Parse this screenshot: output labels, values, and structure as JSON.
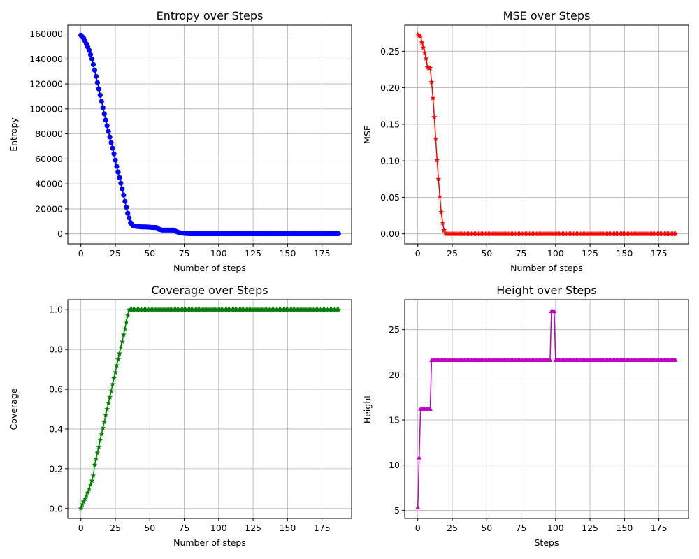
{
  "chart_data": [
    {
      "type": "line",
      "title": "Entropy over Steps",
      "xlabel": "Number of steps",
      "ylabel": "Entropy",
      "color": "#0000ff",
      "marker": "circle",
      "grid": true,
      "xlim": [
        -9.5,
        196.5
      ],
      "ylim": [
        -8000,
        167000
      ],
      "xticks": [
        0,
        25,
        50,
        75,
        100,
        125,
        150,
        175
      ],
      "yticks": [
        0,
        20000,
        40000,
        60000,
        80000,
        100000,
        120000,
        140000,
        160000
      ],
      "x_range": [
        0,
        187
      ],
      "keypoints": [
        [
          0,
          159000
        ],
        [
          2,
          156500
        ],
        [
          4,
          152000
        ],
        [
          6,
          147000
        ],
        [
          8,
          140000
        ],
        [
          10,
          131000
        ],
        [
          12,
          121000
        ],
        [
          14,
          111000
        ],
        [
          16,
          101000
        ],
        [
          18,
          91000
        ],
        [
          20,
          82000
        ],
        [
          22,
          73000
        ],
        [
          24,
          64000
        ],
        [
          26,
          54000
        ],
        [
          28,
          45000
        ],
        [
          30,
          36000
        ],
        [
          32,
          26000
        ],
        [
          34,
          16500
        ],
        [
          36,
          9000
        ],
        [
          38,
          6500
        ],
        [
          40,
          6000
        ],
        [
          42,
          5800
        ],
        [
          44,
          5600
        ],
        [
          48,
          5500
        ],
        [
          50,
          5300
        ],
        [
          55,
          5000
        ],
        [
          57,
          3500
        ],
        [
          59,
          3000
        ],
        [
          67,
          3000
        ],
        [
          70,
          1500
        ],
        [
          72,
          800
        ],
        [
          76,
          300
        ],
        [
          80,
          100
        ],
        [
          187,
          100
        ]
      ]
    },
    {
      "type": "line",
      "title": "MSE over Steps",
      "xlabel": "Number of steps",
      "ylabel": "MSE",
      "color": "#ff0000",
      "marker": "star",
      "grid": true,
      "xlim": [
        -9.5,
        196.5
      ],
      "ylim": [
        -0.0137,
        0.2857
      ],
      "xticks": [
        0,
        25,
        50,
        75,
        100,
        125,
        150,
        175
      ],
      "yticks": [
        0.0,
        0.05,
        0.1,
        0.15,
        0.2,
        0.25
      ],
      "x_range": [
        0,
        187
      ],
      "keypoints": [
        [
          0,
          0.273
        ],
        [
          2,
          0.27
        ],
        [
          3,
          0.262
        ],
        [
          4,
          0.255
        ],
        [
          5,
          0.248
        ],
        [
          6,
          0.24
        ],
        [
          7,
          0.228
        ],
        [
          8,
          0.227
        ],
        [
          9,
          0.227
        ],
        [
          10,
          0.208
        ],
        [
          11,
          0.186
        ],
        [
          12,
          0.16
        ],
        [
          13,
          0.13
        ],
        [
          14,
          0.101
        ],
        [
          15,
          0.075
        ],
        [
          16,
          0.051
        ],
        [
          17,
          0.03
        ],
        [
          18,
          0.015
        ],
        [
          19,
          0.005
        ],
        [
          20,
          0.001
        ],
        [
          21,
          0.0
        ],
        [
          187,
          0.0
        ]
      ]
    },
    {
      "type": "line",
      "title": "Coverage over Steps",
      "xlabel": "Number of steps",
      "ylabel": "Coverage",
      "color": "#008000",
      "marker": "star",
      "grid": true,
      "xlim": [
        -9.5,
        196.5
      ],
      "ylim": [
        -0.05,
        1.05
      ],
      "xticks": [
        0,
        25,
        50,
        75,
        100,
        125,
        150,
        175
      ],
      "yticks": [
        0.0,
        0.2,
        0.4,
        0.6,
        0.8,
        1.0
      ],
      "x_range": [
        0,
        187
      ],
      "keypoints": [
        [
          0,
          0.0
        ],
        [
          1,
          0.02
        ],
        [
          2,
          0.035
        ],
        [
          3,
          0.05
        ],
        [
          4,
          0.065
        ],
        [
          5,
          0.08
        ],
        [
          6,
          0.1
        ],
        [
          7,
          0.12
        ],
        [
          8,
          0.14
        ],
        [
          9,
          0.165
        ],
        [
          10,
          0.22
        ],
        [
          11,
          0.25
        ],
        [
          12,
          0.28
        ],
        [
          13,
          0.31
        ],
        [
          14,
          0.345
        ],
        [
          15,
          0.375
        ],
        [
          16,
          0.405
        ],
        [
          17,
          0.435
        ],
        [
          18,
          0.47
        ],
        [
          19,
          0.5
        ],
        [
          20,
          0.53
        ],
        [
          21,
          0.56
        ],
        [
          22,
          0.59
        ],
        [
          23,
          0.625
        ],
        [
          24,
          0.655
        ],
        [
          25,
          0.685
        ],
        [
          26,
          0.72
        ],
        [
          27,
          0.75
        ],
        [
          28,
          0.78
        ],
        [
          29,
          0.81
        ],
        [
          30,
          0.84
        ],
        [
          31,
          0.875
        ],
        [
          32,
          0.905
        ],
        [
          33,
          0.94
        ],
        [
          34,
          0.97
        ],
        [
          35,
          1.0
        ],
        [
          187,
          1.0
        ]
      ]
    },
    {
      "type": "line",
      "title": "Height over Steps",
      "xlabel": "Steps",
      "ylabel": "Height",
      "color": "#c000c0",
      "marker": "triangle",
      "grid": true,
      "xlim": [
        -9.5,
        196.5
      ],
      "ylim": [
        4.1,
        28.3
      ],
      "xticks": [
        0,
        25,
        50,
        75,
        100,
        125,
        150,
        175
      ],
      "yticks": [
        5,
        10,
        15,
        20,
        25
      ],
      "x_range": [
        0,
        187
      ],
      "keypoints": [
        [
          0,
          5.3
        ],
        [
          1,
          10.8
        ],
        [
          2,
          16.2
        ],
        [
          9,
          16.2
        ],
        [
          10,
          21.6
        ],
        [
          96,
          21.6
        ],
        [
          97,
          27.0
        ],
        [
          99,
          27.0
        ],
        [
          100,
          21.6
        ],
        [
          187,
          21.6
        ]
      ]
    }
  ]
}
